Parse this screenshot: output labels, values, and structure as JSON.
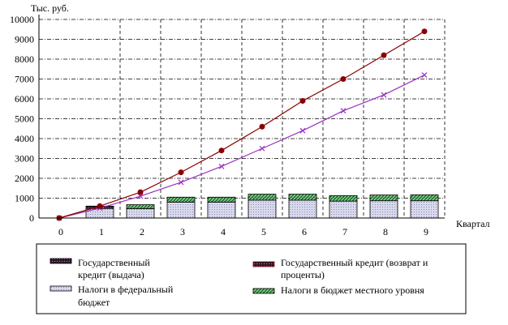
{
  "chart_data": {
    "type": "bar",
    "ylabel": "Тыс. руб.",
    "xlabel": "Квартал",
    "categories": [
      "0",
      "1",
      "2",
      "3",
      "4",
      "5",
      "6",
      "7",
      "8",
      "9"
    ],
    "ylim": [
      0,
      10000
    ],
    "yticks": [
      "0",
      "1000",
      "2000",
      "3000",
      "4000",
      "5000",
      "6000",
      "7000",
      "8000",
      "9000",
      "10000"
    ],
    "grid": "horizontal dash-dot lines and vertical dashed separators",
    "legend_position": "bottom",
    "series": [
      {
        "name": "Государственный кредит (выдача)",
        "kind": "bar",
        "color": "#1a1a1a",
        "values": [
          0,
          120,
          0,
          0,
          0,
          0,
          0,
          0,
          0,
          0
        ]
      },
      {
        "name": "Налоги в федеральный бюджет",
        "kind": "bar",
        "color": "#c8c8e0",
        "values": [
          0,
          480,
          470,
          800,
          800,
          900,
          900,
          850,
          870,
          870
        ]
      },
      {
        "name": "Налоги в бюджет местного уровня",
        "kind": "bar",
        "color": "#1f7a2e",
        "values": [
          0,
          0,
          200,
          250,
          250,
          300,
          300,
          280,
          290,
          300
        ]
      },
      {
        "name": "Государственный кредит (возврат и проценты)",
        "kind": "line",
        "color": "#8b0000",
        "marker": "circle",
        "values": [
          0,
          600,
          1300,
          2300,
          3400,
          4600,
          5900,
          7000,
          8200,
          9400
        ]
      },
      {
        "name": "",
        "kind": "line",
        "color": "#9b30c0",
        "marker": "x",
        "values": [
          0,
          500,
          1100,
          1800,
          2600,
          3500,
          4400,
          5400,
          6200,
          7200
        ]
      }
    ]
  }
}
